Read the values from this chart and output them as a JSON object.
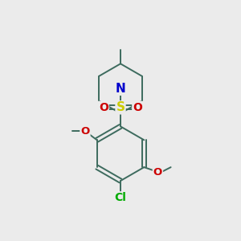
{
  "background_color": "#ebebeb",
  "bond_color": "#3d6b5e",
  "atom_colors": {
    "N": "#0000cc",
    "O": "#cc0000",
    "S": "#cccc00",
    "Cl": "#00aa00",
    "C": "#3d6b5e"
  },
  "figsize": [
    3.0,
    3.0
  ],
  "dpi": 100,
  "xlim": [
    0,
    10
  ],
  "ylim": [
    0,
    10
  ]
}
